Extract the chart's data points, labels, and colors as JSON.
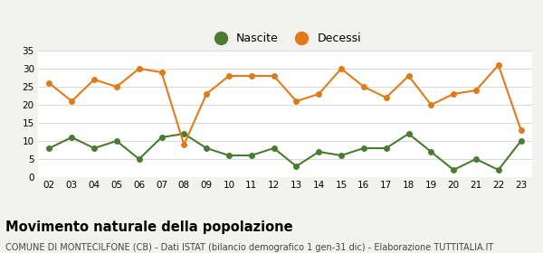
{
  "years": [
    "02",
    "03",
    "04",
    "05",
    "06",
    "07",
    "08",
    "09",
    "10",
    "11",
    "12",
    "13",
    "14",
    "15",
    "16",
    "17",
    "18",
    "19",
    "20",
    "21",
    "22",
    "23"
  ],
  "nascite": [
    8,
    11,
    8,
    10,
    5,
    11,
    12,
    8,
    6,
    6,
    8,
    3,
    7,
    6,
    8,
    8,
    12,
    7,
    2,
    5,
    2,
    10
  ],
  "decessi": [
    26,
    21,
    27,
    25,
    30,
    29,
    9,
    23,
    28,
    28,
    28,
    21,
    23,
    30,
    25,
    22,
    28,
    20,
    23,
    24,
    31,
    13
  ],
  "nascite_color": "#4a7c2f",
  "decessi_color": "#e07b1a",
  "bg_color": "#f2f2f0",
  "plot_bg_color": "#ffffff",
  "grid_color": "#d8d8d8",
  "title": "Movimento naturale della popolazione",
  "subtitle": "COMUNE DI MONTECILFONE (CB) - Dati ISTAT (bilancio demografico 1 gen-31 dic) - Elaborazione TUTTITALIA.IT",
  "ylim": [
    0,
    35
  ],
  "yticks": [
    0,
    5,
    10,
    15,
    20,
    25,
    30,
    35
  ],
  "legend_nascite": "Nascite",
  "legend_decessi": "Decessi",
  "title_fontsize": 10.5,
  "subtitle_fontsize": 7.0,
  "tick_fontsize": 7.5,
  "marker_size": 4,
  "linewidth": 1.5
}
